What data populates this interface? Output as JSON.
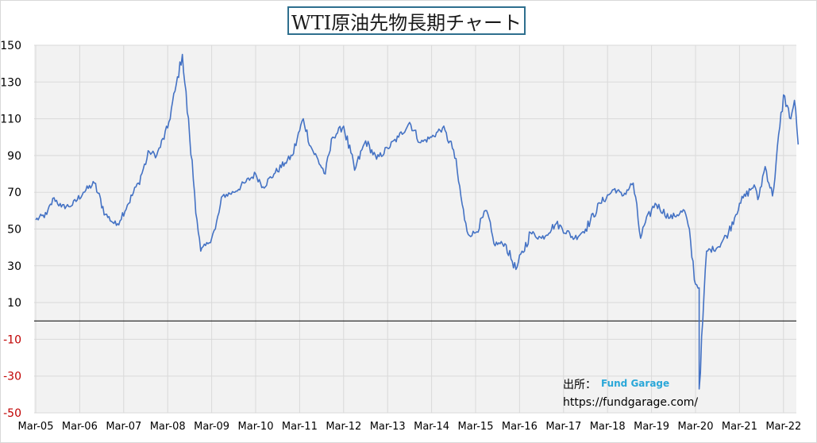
{
  "title": "WTI原油先物長期チャート",
  "source": {
    "prefix": "出所：",
    "name": "Fund Garage",
    "url": "https://fundgarage.com/"
  },
  "colors": {
    "line": "#4472c4",
    "plot_bg": "#f2f2f2",
    "grid": "#d9d9d9",
    "zero_line": "#000000",
    "negative_tick": "#c00000",
    "positive_tick": "#000000",
    "title_border": "#2e6f8e",
    "source_name": "#2aa7d8"
  },
  "chart_data": {
    "type": "line",
    "title": "WTI原油先物長期チャート",
    "xlabel": "",
    "ylabel": "",
    "ylim": [
      -50,
      150
    ],
    "yticks": [
      150,
      130,
      110,
      90,
      70,
      50,
      30,
      10,
      -10,
      -30,
      -50
    ],
    "xticks": [
      "Mar-05",
      "Mar-06",
      "Mar-07",
      "Mar-08",
      "Mar-09",
      "Mar-10",
      "Mar-11",
      "Mar-12",
      "Mar-13",
      "Mar-14",
      "Mar-15",
      "Mar-16",
      "Mar-17",
      "Mar-18",
      "Mar-19",
      "Mar-20",
      "Mar-21",
      "Mar-22"
    ],
    "grid": true,
    "legend": "none",
    "series": [
      {
        "x": [
          "2005-03",
          "2005-06",
          "2005-08",
          "2005-10",
          "2006-01",
          "2006-04",
          "2006-07",
          "2006-10",
          "2007-01",
          "2007-04",
          "2007-07",
          "2007-10",
          "2007-12",
          "2008-03",
          "2008-05",
          "2008-07",
          "2008-09",
          "2008-11",
          "2008-12",
          "2009-02",
          "2009-04",
          "2009-06",
          "2009-09",
          "2009-12",
          "2010-03",
          "2010-05",
          "2010-08",
          "2010-11",
          "2011-01",
          "2011-04",
          "2011-06",
          "2011-10",
          "2011-12",
          "2012-03",
          "2012-06",
          "2012-09",
          "2012-12",
          "2013-03",
          "2013-06",
          "2013-09",
          "2013-12",
          "2014-03",
          "2014-06",
          "2014-09",
          "2014-12",
          "2015-01",
          "2015-03",
          "2015-06",
          "2015-08",
          "2015-11",
          "2016-02",
          "2016-06",
          "2016-09",
          "2017-01",
          "2017-06",
          "2017-09",
          "2018-01",
          "2018-05",
          "2018-07",
          "2018-10",
          "2018-12",
          "2019-01",
          "2019-04",
          "2019-08",
          "2019-12",
          "2020-01",
          "2020-03",
          "2020-04",
          "2020-04",
          "2020-06",
          "2020-09",
          "2020-12",
          "2021-03",
          "2021-07",
          "2021-08",
          "2021-10",
          "2021-12",
          "2022-03",
          "2022-05",
          "2022-06",
          "2022-07"
        ],
        "y": [
          55,
          58,
          67,
          62,
          63,
          70,
          75,
          58,
          52,
          63,
          75,
          92,
          90,
          105,
          125,
          145,
          100,
          55,
          38,
          42,
          50,
          68,
          70,
          75,
          80,
          73,
          80,
          86,
          90,
          110,
          95,
          80,
          100,
          106,
          82,
          98,
          88,
          94,
          100,
          108,
          97,
          100,
          105,
          93,
          55,
          47,
          48,
          60,
          42,
          42,
          28,
          48,
          45,
          53,
          45,
          50,
          64,
          72,
          68,
          75,
          45,
          52,
          64,
          56,
          60,
          52,
          20,
          18,
          -37,
          38,
          40,
          48,
          64,
          74,
          66,
          84,
          68,
          123,
          110,
          120,
          96
        ]
      }
    ]
  }
}
